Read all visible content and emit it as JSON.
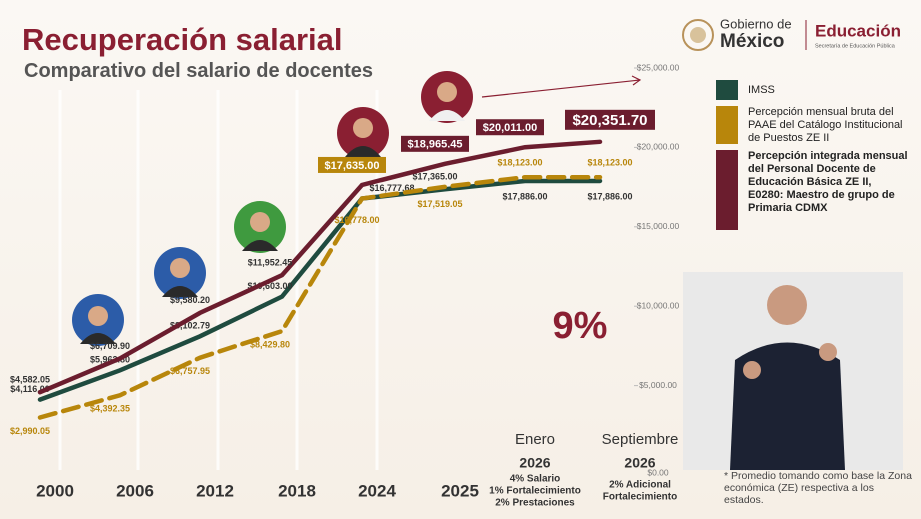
{
  "chart_data": {
    "type": "line",
    "title": "Recuperación salarial",
    "subtitle": "Comparativo del salario de docentes",
    "categories": [
      "2000",
      "2006",
      "2012",
      "2018",
      "2024",
      "2025",
      null,
      null
    ],
    "period_notes": [
      {
        "month": "Enero",
        "year": "2026",
        "lines": [
          "4% Salario",
          "1% Fortalecimiento",
          "2% Prestaciones"
        ]
      },
      {
        "month": "Septiembre",
        "year": "2026",
        "lines": [
          "2% Adicional",
          "Fortalecimiento"
        ]
      }
    ],
    "series": [
      {
        "name": "IMSS",
        "color": "#1f4b3f",
        "values": [
          4116.0,
          5962.8,
          8102.79,
          10603.0,
          16777.68,
          17365.0,
          17886.0,
          17886.0
        ],
        "value_labels": [
          "$4,116.00",
          "$5,962.80",
          "$8,102.79",
          "$10,603.00",
          "$16,777.68",
          "$17,365.00",
          "$17,886.00",
          "$17,886.00"
        ]
      },
      {
        "name": "Percepción mensual bruta del PAAE del Catálogo Institucional de Puestos ZE II",
        "color": "#b8860b",
        "values": [
          2990.05,
          4392.35,
          6757.95,
          8429.8,
          16778.0,
          17519.05,
          18123.0,
          18123.0
        ],
        "value_labels": [
          "$2,990.05",
          "$4,392.35",
          "$6,757.95",
          "$8,429.80",
          "$16,778.00",
          "$17,519.05",
          "$18,123.00",
          "$18,123.00"
        ]
      },
      {
        "name": "Percepción integrada mensual del Personal Docente de Educación Básica ZE II, E0280: Maestro de grupo de Primaria CDMX",
        "color": "#6b1d2e",
        "values": [
          4582.05,
          6709.9,
          9580.2,
          11952.45,
          17635.0,
          18965.45,
          20011.0,
          20351.7
        ],
        "value_labels": [
          "$4,582.05",
          "$6,709.90",
          "$9,580.20",
          "$11,952.45",
          "$17,635.00",
          "$18,965.45",
          "$20,011.00",
          "$20,351.70"
        ]
      }
    ],
    "ylim": [
      0,
      25000
    ],
    "yticks": [
      {
        "value": 0,
        "label": "$0.00"
      },
      {
        "value": 5000,
        "label": "$5,000.00"
      },
      {
        "value": 10000,
        "label": "$10,000.00"
      },
      {
        "value": 15000,
        "label": "$15,000.00"
      },
      {
        "value": 20000,
        "label": "$20,000.00"
      },
      {
        "value": 25000,
        "label": "$25,000.00"
      }
    ],
    "grid": false,
    "annotation": "9%",
    "footnote": "* Promedio tomando como base la Zona económica (ZE) respectiva a los estados."
  },
  "header": {
    "gov_line1": "Gobierno de",
    "gov_line2": "México",
    "dept": "Educación",
    "dept_sub": "Secretaría de Educación Pública"
  }
}
